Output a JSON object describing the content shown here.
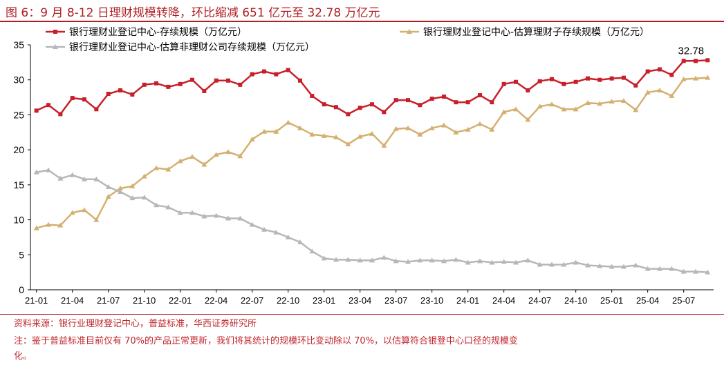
{
  "title": "图 6：9 月 8-12 日理财规模转降，环比缩减 651 亿元至 32.78 万亿元",
  "source": "资料来源：银行业理财登记中心，普益标准，华西证券研究所",
  "note_line1": "注：鉴于普益标准目前仅有 70%的产品正常更新，我们将其统计的规模环比变动除以 70%，以估算符合银登中心口径的规模变",
  "note_line2": "化。",
  "chart_data": {
    "type": "line",
    "title": "图 6：9 月 8-12 日理财规模转降，环比缩减 651 亿元至 32.78 万亿元",
    "xlabel": "",
    "ylabel": "",
    "ylim": [
      0,
      35
    ],
    "yticks": [
      0,
      5,
      10,
      15,
      20,
      25,
      30,
      35
    ],
    "grid": false,
    "legend_position": "top",
    "x_tick_labels": [
      "21-01",
      "21-04",
      "21-07",
      "21-10",
      "22-01",
      "22-04",
      "22-07",
      "22-10",
      "23-01",
      "23-04",
      "23-07",
      "23-10",
      "24-01",
      "24-04",
      "24-07",
      "24-10",
      "25-01",
      "25-04",
      "25-07"
    ],
    "annotation": "32.78",
    "series": [
      {
        "name": "银行理财业登记中心-存续规模（万亿元）",
        "color": "#c8202a",
        "marker": "square",
        "values": [
          25.6,
          26.4,
          25.1,
          27.4,
          27.2,
          25.8,
          28.0,
          28.5,
          27.9,
          29.3,
          29.5,
          29.0,
          29.4,
          30.0,
          28.4,
          29.9,
          29.9,
          29.3,
          30.8,
          31.2,
          30.8,
          31.4,
          29.9,
          27.7,
          26.5,
          26.1,
          25.1,
          26.0,
          26.5,
          25.4,
          27.1,
          27.1,
          26.4,
          27.3,
          27.6,
          26.8,
          26.8,
          27.8,
          26.8,
          29.4,
          29.7,
          28.5,
          29.8,
          30.1,
          29.4,
          29.7,
          30.2,
          30.0,
          30.2,
          30.3,
          29.2,
          31.2,
          31.5,
          30.7,
          32.7,
          32.7,
          32.8
        ]
      },
      {
        "name": "银行理财业登记中心-估算理财子存续规模（万亿元）",
        "color": "#d4b070",
        "marker": "triangle",
        "values": [
          8.8,
          9.3,
          9.2,
          11.0,
          11.4,
          10.0,
          13.3,
          14.5,
          14.8,
          16.2,
          17.4,
          17.2,
          18.4,
          19.0,
          17.9,
          19.3,
          19.7,
          19.1,
          21.5,
          22.6,
          22.6,
          23.9,
          23.1,
          22.2,
          22.0,
          21.8,
          20.8,
          21.9,
          22.3,
          20.6,
          23.0,
          23.1,
          22.2,
          23.1,
          23.5,
          22.5,
          22.9,
          23.7,
          22.9,
          25.4,
          25.8,
          24.3,
          26.2,
          26.5,
          25.8,
          25.8,
          26.7,
          26.6,
          26.9,
          27.0,
          25.7,
          28.2,
          28.5,
          27.7,
          30.1,
          30.2,
          30.3
        ]
      },
      {
        "name": "银行理财业登记中心-估算非理财公司存续规模（万亿元）",
        "color": "#b7b7b7",
        "marker": "triangle",
        "values": [
          16.8,
          17.1,
          15.9,
          16.4,
          15.8,
          15.8,
          14.7,
          14.0,
          13.1,
          13.2,
          12.1,
          11.8,
          11.0,
          11.0,
          10.5,
          10.6,
          10.2,
          10.2,
          9.3,
          8.6,
          8.2,
          7.5,
          6.8,
          5.5,
          4.5,
          4.3,
          4.3,
          4.2,
          4.2,
          4.6,
          4.1,
          4.0,
          4.2,
          4.2,
          4.1,
          4.3,
          3.9,
          4.1,
          3.9,
          4.0,
          3.9,
          4.2,
          3.6,
          3.6,
          3.6,
          3.9,
          3.5,
          3.4,
          3.3,
          3.3,
          3.5,
          3.0,
          3.0,
          3.0,
          2.6,
          2.6,
          2.5
        ]
      }
    ]
  }
}
